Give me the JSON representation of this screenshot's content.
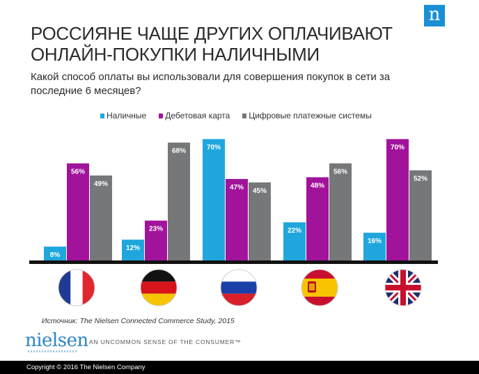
{
  "brand": {
    "corner_logo": "n",
    "name": "nielsen",
    "tagline": "AN UNCOMMON SENSE OF THE CONSUMER™"
  },
  "source": "Источник: The Nielsen Connected Commerce Study, 2015",
  "footer": "Copyright © 2016 The Nielsen Company",
  "flags": [
    "flag-france",
    "flag-germany",
    "flag-russia",
    "flag-spain",
    "flag-uk"
  ],
  "chart_data": {
    "type": "bar",
    "title": "РОССИЯНЕ ЧАЩЕ ДРУГИХ ОПЛАЧИВАЮТ ОНЛАЙН-ПОКУПКИ НАЛИЧНЫМИ",
    "subtitle": "Какой способ оплаты вы использовали для совершения покупок в сети за последние 6 месяцев?",
    "categories": [
      "",
      "",
      "",
      "",
      ""
    ],
    "ylim": [
      0,
      100
    ],
    "legend_position": "top",
    "grid": false,
    "series": [
      {
        "name": "Наличные",
        "color": "#1fa7dd",
        "values": [
          8,
          12,
          70,
          22,
          16
        ],
        "labels": [
          "8%",
          "12%",
          "70%",
          "22%",
          "16%"
        ]
      },
      {
        "name": "Дебетовая карта",
        "color": "#a2139c",
        "values": [
          56,
          23,
          47,
          48,
          70
        ],
        "labels": [
          "56%",
          "23%",
          "47%",
          "48%",
          "70%"
        ]
      },
      {
        "name": "Цифровые платежные системы",
        "color": "#757778",
        "values": [
          49,
          68,
          45,
          56,
          52
        ],
        "labels": [
          "49%",
          "68%",
          "45%",
          "56%",
          "52%"
        ]
      }
    ]
  }
}
